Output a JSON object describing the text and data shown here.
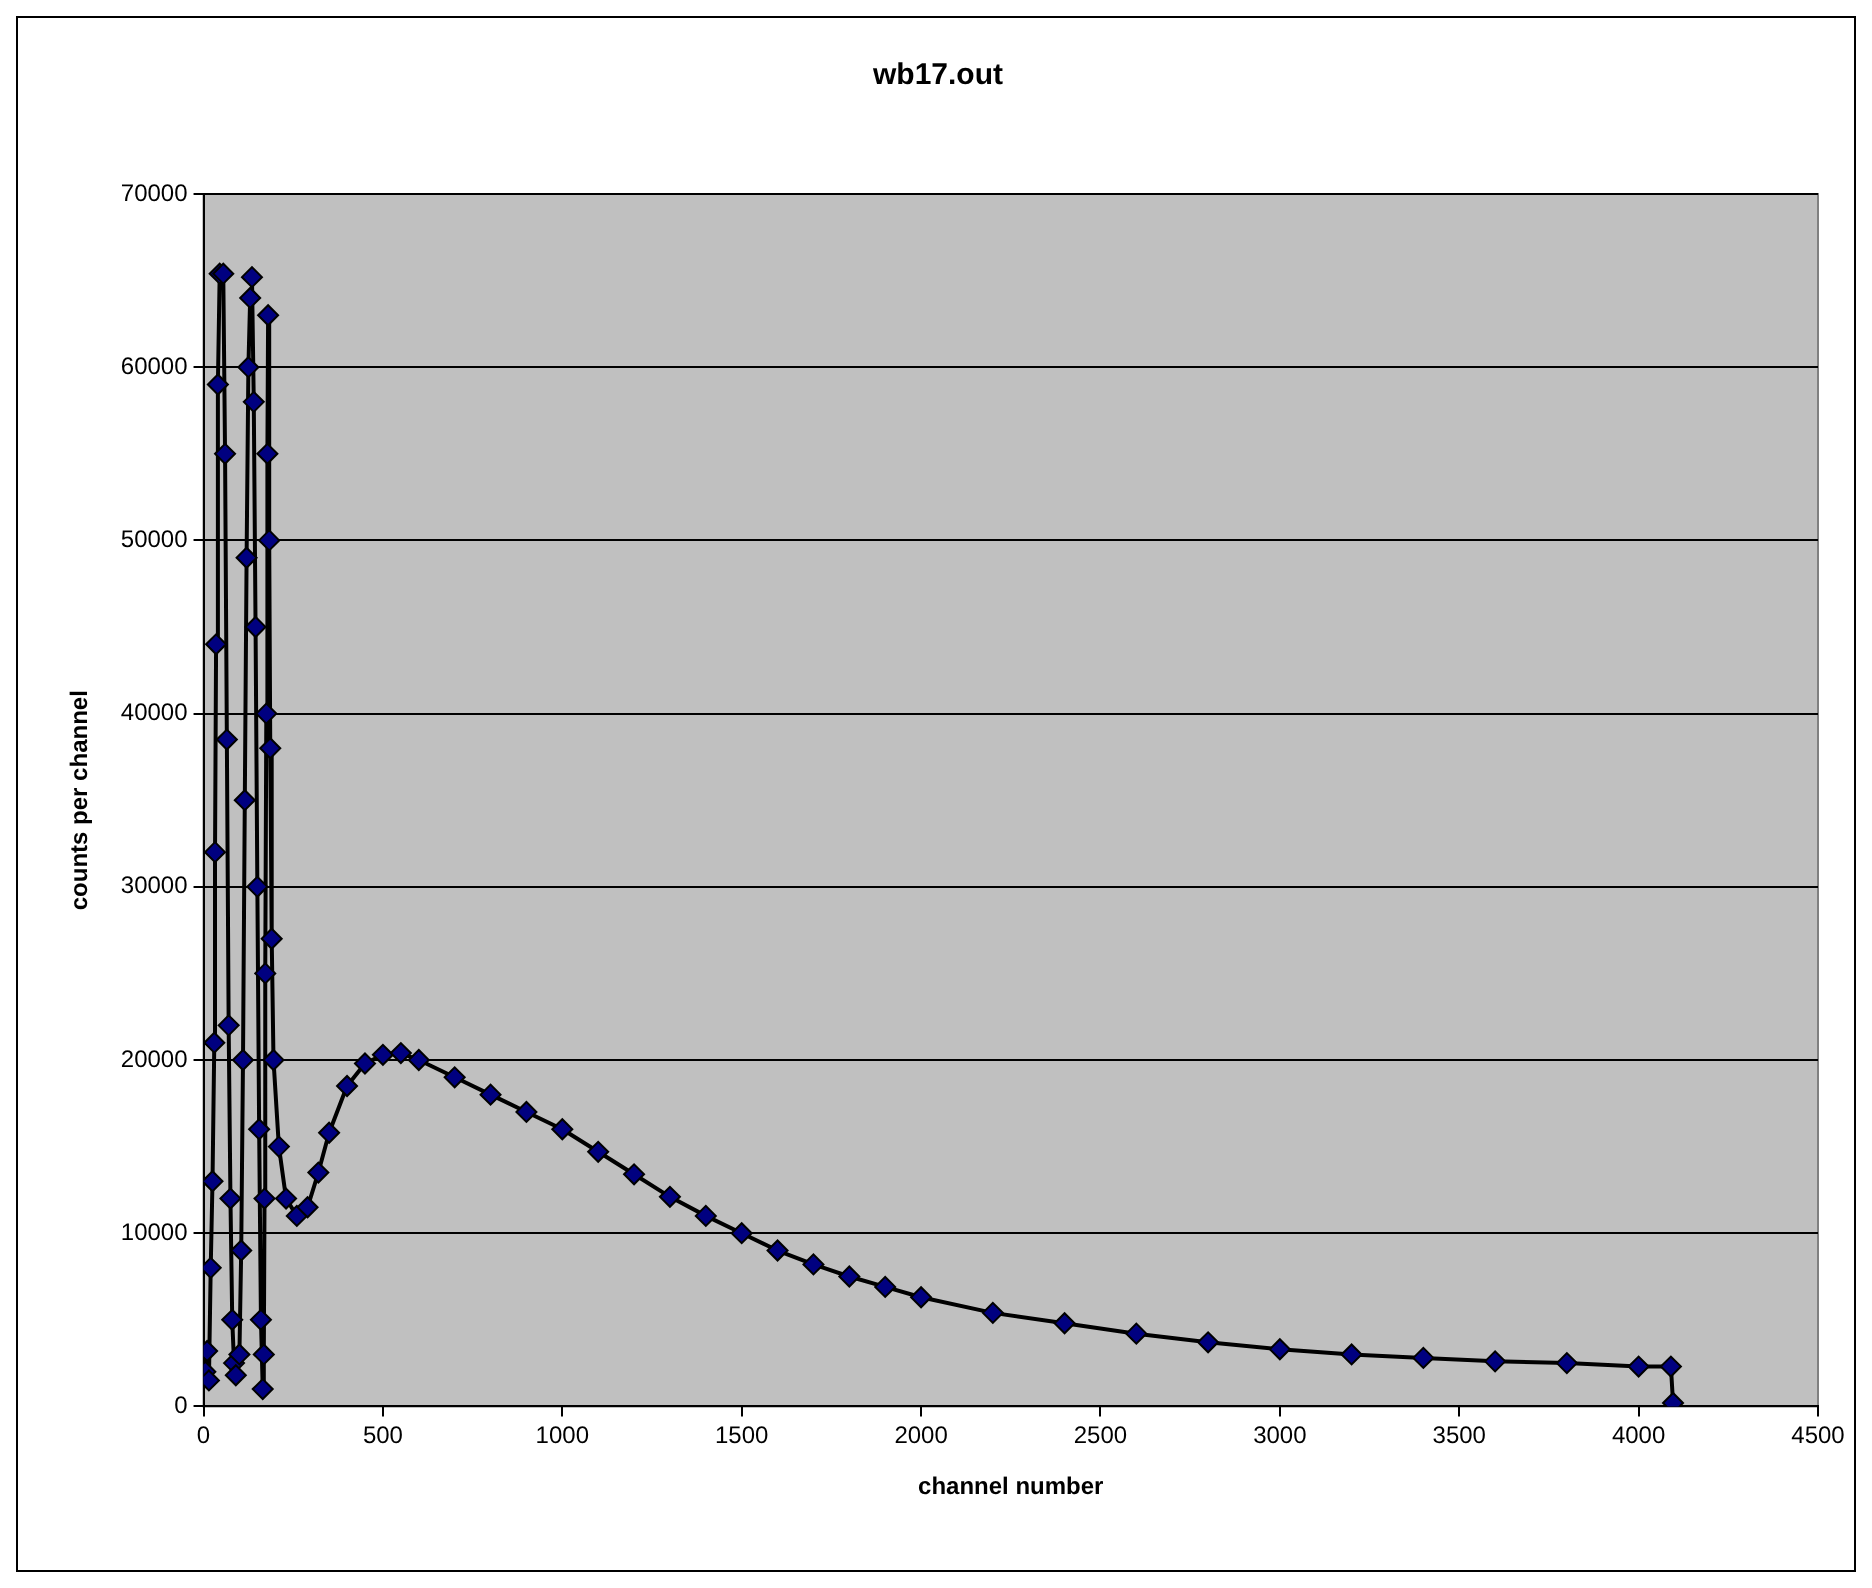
{
  "chart_data": {
    "type": "line",
    "title": "wb17.out",
    "xlabel": "channel number",
    "ylabel": "counts per channel",
    "xlim": [
      0,
      4500
    ],
    "xticks": [
      0,
      500,
      1000,
      1500,
      2000,
      2500,
      3000,
      3500,
      4000,
      4500
    ],
    "ylim": [
      0,
      70000
    ],
    "yticks": [
      0,
      10000,
      20000,
      30000,
      40000,
      50000,
      60000,
      70000
    ],
    "grid": "y",
    "legend": false,
    "marker": "diamond",
    "line_style": "solid",
    "series": [
      {
        "color": "#000080",
        "x": [
          5,
          10,
          15,
          20,
          25,
          30,
          32,
          35,
          40,
          45,
          55,
          60,
          65,
          70,
          75,
          80,
          85,
          90,
          100,
          105,
          110,
          115,
          120,
          125,
          130,
          135,
          140,
          145,
          150,
          155,
          160,
          165,
          168,
          170,
          172,
          175,
          178,
          180,
          183,
          186,
          190,
          195,
          210,
          230,
          260,
          290,
          320,
          350,
          400,
          450,
          500,
          550,
          600,
          700,
          800,
          900,
          1000,
          1100,
          1200,
          1300,
          1400,
          1500,
          1600,
          1700,
          1800,
          1900,
          2000,
          2200,
          2400,
          2600,
          2800,
          3000,
          3200,
          3400,
          3600,
          3800,
          4000,
          4090,
          4096
        ],
        "values": [
          2000,
          3200,
          1500,
          8000,
          13000,
          21000,
          32000,
          44000,
          59000,
          65400,
          65400,
          55000,
          38500,
          22000,
          12000,
          5000,
          2500,
          1800,
          3000,
          9000,
          20000,
          35000,
          49000,
          60000,
          64000,
          65200,
          58000,
          45000,
          30000,
          16000,
          5000,
          1000,
          3000,
          12000,
          25000,
          40000,
          55000,
          63000,
          50000,
          38000,
          27000,
          20000,
          15000,
          12000,
          11000,
          11500,
          13500,
          15800,
          18500,
          19800,
          20300,
          20400,
          20000,
          19000,
          18000,
          17000,
          16000,
          14700,
          13400,
          12100,
          11000,
          10000,
          9000,
          8200,
          7500,
          6900,
          6300,
          5400,
          4800,
          4200,
          3700,
          3300,
          3000,
          2800,
          2600,
          2500,
          2300,
          2300,
          200
        ]
      }
    ]
  }
}
